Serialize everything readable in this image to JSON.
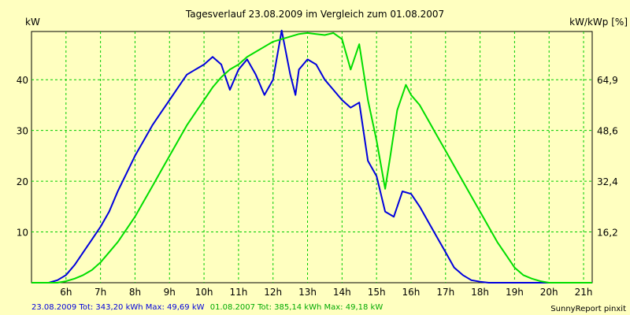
{
  "chart_data": {
    "type": "line",
    "title": "Tagesverlauf 23.08.2009 im Vergleich zum 01.08.2007",
    "ylabel_left": "kW",
    "ylabel_right": "kW/kWp [%]",
    "x_ticks": [
      "6h",
      "7h",
      "8h",
      "9h",
      "10h",
      "11h",
      "12h",
      "13h",
      "14h",
      "15h",
      "16h",
      "17h",
      "18h",
      "19h",
      "20h",
      "21h"
    ],
    "x_range": [
      5.0,
      21.25
    ],
    "y_left_ticks": [
      "10",
      "20",
      "30",
      "40"
    ],
    "y_left_range": [
      0,
      49.5
    ],
    "y_right_ticks": [
      "16,2",
      "32,4",
      "48,6",
      "64,9"
    ],
    "grid": true,
    "series": [
      {
        "name": "23.08.2009",
        "color": "#0000dd",
        "x": [
          5.0,
          5.5,
          5.75,
          6.0,
          6.25,
          6.5,
          6.75,
          7.0,
          7.25,
          7.5,
          7.75,
          8.0,
          8.25,
          8.5,
          8.75,
          9.0,
          9.25,
          9.5,
          9.75,
          10.0,
          10.25,
          10.5,
          10.75,
          11.0,
          11.25,
          11.5,
          11.75,
          12.0,
          12.25,
          12.5,
          12.65,
          12.75,
          13.0,
          13.25,
          13.5,
          13.75,
          14.0,
          14.25,
          14.5,
          14.75,
          15.0,
          15.25,
          15.5,
          15.75,
          16.0,
          16.25,
          16.5,
          16.75,
          17.0,
          17.25,
          17.5,
          17.75,
          18.0,
          18.25,
          18.5,
          18.75,
          19.0,
          19.25,
          19.5,
          19.75,
          20.0
        ],
        "values": [
          0,
          0,
          0.5,
          1.5,
          3.5,
          6,
          8.5,
          11,
          14,
          18,
          21.5,
          25,
          28,
          31,
          33.5,
          36,
          38.5,
          41,
          42,
          43,
          44.5,
          43,
          38,
          42,
          44,
          41,
          37,
          40,
          49.7,
          41,
          37,
          42,
          44,
          43,
          40,
          38,
          36,
          34.5,
          35.5,
          24,
          21,
          14,
          13,
          18,
          17.5,
          15,
          12,
          9,
          6,
          3,
          1.5,
          0.5,
          0.2,
          0,
          0,
          0,
          0,
          0,
          0,
          0,
          0
        ]
      },
      {
        "name": "01.08.2007",
        "color": "#00dd00",
        "x": [
          5.0,
          5.5,
          5.75,
          6.0,
          6.25,
          6.5,
          6.75,
          7.0,
          7.25,
          7.5,
          7.75,
          8.0,
          8.25,
          8.5,
          8.75,
          9.0,
          9.25,
          9.5,
          9.75,
          10.0,
          10.25,
          10.5,
          10.75,
          11.0,
          11.25,
          11.5,
          11.75,
          12.0,
          12.25,
          12.5,
          12.75,
          13.0,
          13.25,
          13.5,
          13.75,
          14.0,
          14.25,
          14.5,
          14.75,
          15.0,
          15.25,
          15.4,
          15.6,
          15.85,
          16.0,
          16.25,
          16.5,
          16.75,
          17.0,
          17.25,
          17.5,
          17.75,
          18.0,
          18.25,
          18.5,
          18.75,
          19.0,
          19.25,
          19.5,
          19.75,
          20.0,
          20.25,
          20.5,
          20.75,
          21.0,
          21.25
        ],
        "values": [
          0,
          0,
          0,
          0.3,
          0.8,
          1.5,
          2.5,
          4,
          6,
          8,
          10.5,
          13,
          16,
          19,
          22,
          25,
          28,
          31,
          33.5,
          36,
          38.5,
          40.5,
          42,
          43,
          44.5,
          45.5,
          46.5,
          47.5,
          48,
          48.5,
          49,
          49.2,
          49,
          48.8,
          49.2,
          48,
          42,
          47,
          36,
          28,
          18.5,
          25,
          34,
          39,
          37,
          35,
          32,
          29,
          26,
          23,
          20,
          17,
          14,
          11,
          8,
          5.5,
          3,
          1.5,
          0.8,
          0.3,
          0,
          0,
          0,
          0,
          0,
          0
        ]
      }
    ]
  },
  "footer": {
    "series1_label": "23.08.2009 Tot: 343,20 kWh Max: 49,69 kW",
    "series2_label": "01.08.2007 Tot: 385,14 kWh Max: 49,18 kW",
    "brand": "SunnyReport pinxit"
  }
}
